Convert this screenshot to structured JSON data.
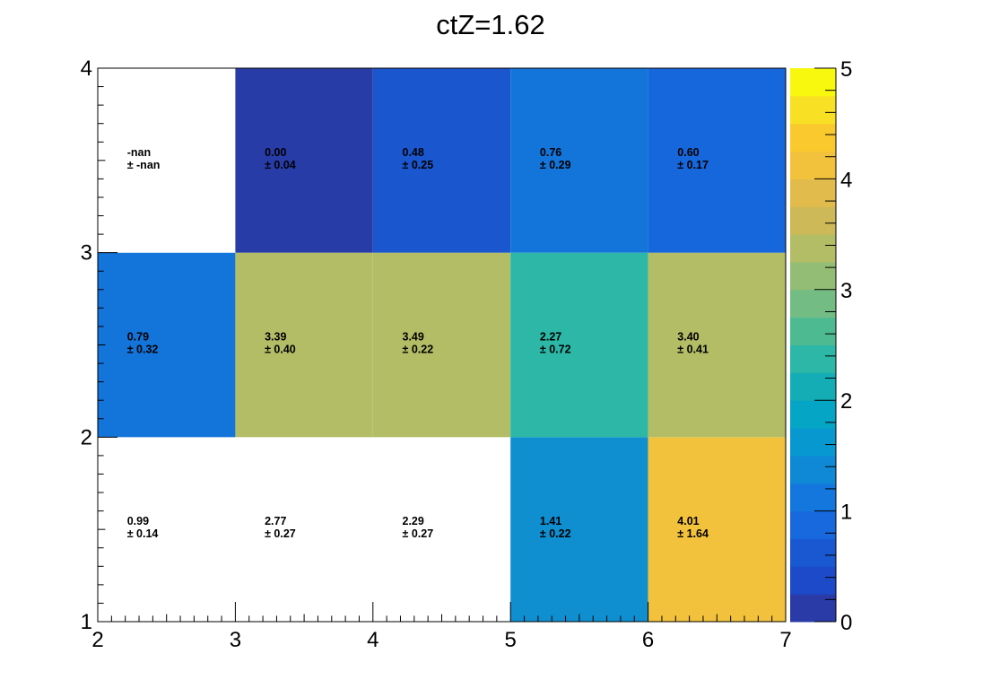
{
  "chart_data": {
    "type": "heatmap",
    "title": "ctZ=1.62",
    "xlabel": "",
    "ylabel": "",
    "x_edges": [
      2,
      3,
      4,
      5,
      6,
      7
    ],
    "y_edges": [
      1,
      2,
      3,
      4
    ],
    "x_ticks": [
      "2",
      "3",
      "4",
      "5",
      "6",
      "7"
    ],
    "y_ticks": [
      "1",
      "2",
      "3",
      "4"
    ],
    "z_range": [
      0,
      5
    ],
    "z_ticks": [
      "0",
      "1",
      "2",
      "3",
      "4",
      "5"
    ],
    "colormap": "kBird",
    "cells": [
      {
        "x": 2.5,
        "y": 1.5,
        "value": 0.99,
        "label": "0.99",
        "error_label": "± 0.14",
        "fill": "#ffffff"
      },
      {
        "x": 3.5,
        "y": 1.5,
        "value": 2.77,
        "label": "2.77",
        "error_label": "± 0.27",
        "fill": "#ffffff"
      },
      {
        "x": 4.5,
        "y": 1.5,
        "value": 2.29,
        "label": "2.29",
        "error_label": "± 0.27",
        "fill": "#ffffff"
      },
      {
        "x": 5.5,
        "y": 1.5,
        "value": 1.41,
        "label": "1.41",
        "error_label": "± 0.22",
        "fill": "#0f8fd0"
      },
      {
        "x": 6.5,
        "y": 1.5,
        "value": 4.01,
        "label": "4.01",
        "error_label": "± 1.64",
        "fill": "#f3c23c"
      },
      {
        "x": 2.5,
        "y": 2.5,
        "value": 0.79,
        "label": "0.79",
        "error_label": "± 0.32",
        "fill": "#1374d9"
      },
      {
        "x": 3.5,
        "y": 2.5,
        "value": 3.39,
        "label": "3.39",
        "error_label": "± 0.40",
        "fill": "#b2bd66"
      },
      {
        "x": 4.5,
        "y": 2.5,
        "value": 3.49,
        "label": "3.49",
        "error_label": "± 0.22",
        "fill": "#b2bd66"
      },
      {
        "x": 5.5,
        "y": 2.5,
        "value": 2.27,
        "label": "2.27",
        "error_label": "± 0.72",
        "fill": "#2cb7a6"
      },
      {
        "x": 6.5,
        "y": 2.5,
        "value": 3.4,
        "label": "3.40",
        "error_label": "± 0.41",
        "fill": "#b2bd66"
      },
      {
        "x": 2.5,
        "y": 3.5,
        "value": null,
        "label": "-nan",
        "error_label": "± -nan",
        "fill": "#ffffff"
      },
      {
        "x": 3.5,
        "y": 3.5,
        "value": 0.0,
        "label": "0.00",
        "error_label": "± 0.04",
        "fill": "#283ca8"
      },
      {
        "x": 4.5,
        "y": 3.5,
        "value": 0.48,
        "label": "0.48",
        "error_label": "± 0.25",
        "fill": "#1a56cd"
      },
      {
        "x": 5.5,
        "y": 3.5,
        "value": 0.76,
        "label": "0.76",
        "error_label": "± 0.29",
        "fill": "#1374d9"
      },
      {
        "x": 6.5,
        "y": 3.5,
        "value": 0.6,
        "label": "0.60",
        "error_label": "± 0.17",
        "fill": "#1767dc"
      }
    ],
    "palette": [
      "#2a3aa6",
      "#1c4ac8",
      "#1a58d2",
      "#1868de",
      "#1477de",
      "#0f89d6",
      "#0898d0",
      "#05a5c6",
      "#14adb6",
      "#2cb7a6",
      "#4eba92",
      "#73bc84",
      "#93bd74",
      "#b2bd66",
      "#cdb957",
      "#e1bc4c",
      "#f3c23c",
      "#fac92e",
      "#f8e024",
      "#f8f80f"
    ],
    "grid": false
  }
}
